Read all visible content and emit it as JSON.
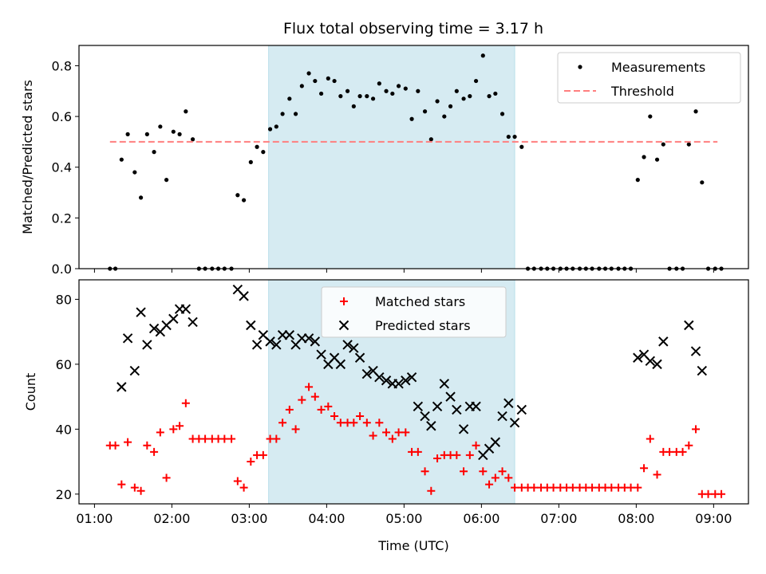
{
  "chart_data": [
    {
      "type": "scatter",
      "title": "Flux total observing time = 3.17 h",
      "xlabel": "",
      "ylabel": "Matched/Predicted stars",
      "ylim": [
        0,
        0.88
      ],
      "yticks": [
        "0.0",
        "0.2",
        "0.4",
        "0.6",
        "0.8"
      ],
      "ytick_values": [
        0,
        0.2,
        0.4,
        0.6,
        0.8
      ],
      "xlim": [
        0.8,
        9.45
      ],
      "legend_position": "top-right",
      "highlight_span": [
        3.25,
        6.43
      ],
      "series": [
        {
          "name": "Measurements",
          "color": "#000000",
          "marker": "dot",
          "x": [
            1.2,
            1.27,
            1.35,
            1.43,
            1.52,
            1.6,
            1.68,
            1.77,
            1.85,
            1.93,
            2.02,
            2.1,
            2.18,
            2.27,
            2.35,
            2.43,
            2.52,
            2.6,
            2.68,
            2.77,
            2.85,
            2.93,
            3.02,
            3.1,
            3.18,
            3.27,
            3.35,
            3.43,
            3.52,
            3.6,
            3.68,
            3.77,
            3.85,
            3.93,
            4.02,
            4.1,
            4.18,
            4.27,
            4.35,
            4.43,
            4.52,
            4.6,
            4.68,
            4.77,
            4.85,
            4.93,
            5.02,
            5.1,
            5.18,
            5.27,
            5.35,
            5.43,
            5.52,
            5.6,
            5.68,
            5.77,
            5.85,
            5.93,
            6.02,
            6.1,
            6.18,
            6.27,
            6.35,
            6.43,
            6.52,
            6.6,
            6.68,
            6.77,
            6.85,
            6.93,
            7.02,
            7.1,
            7.18,
            7.27,
            7.35,
            7.43,
            7.52,
            7.6,
            7.68,
            7.77,
            7.85,
            7.93,
            8.02,
            8.1,
            8.18,
            8.27,
            8.35,
            8.43,
            8.52,
            8.6,
            8.68,
            8.77,
            8.85,
            8.93,
            9.02,
            9.1
          ],
          "y": [
            0,
            0,
            0.43,
            0.53,
            0.38,
            0.28,
            0.53,
            0.46,
            0.56,
            0.35,
            0.54,
            0.53,
            0.62,
            0.51,
            0,
            0,
            0,
            0,
            0,
            0,
            0.29,
            0.27,
            0.42,
            0.48,
            0.46,
            0.55,
            0.56,
            0.61,
            0.67,
            0.61,
            0.72,
            0.77,
            0.74,
            0.69,
            0.75,
            0.74,
            0.68,
            0.7,
            0.64,
            0.68,
            0.68,
            0.67,
            0.73,
            0.7,
            0.69,
            0.72,
            0.71,
            0.59,
            0.7,
            0.62,
            0.51,
            0.66,
            0.6,
            0.64,
            0.7,
            0.67,
            0.68,
            0.74,
            0.84,
            0.68,
            0.69,
            0.61,
            0.52,
            0.52,
            0.48,
            0,
            0,
            0,
            0,
            0,
            0,
            0,
            0,
            0,
            0,
            0,
            0,
            0,
            0,
            0,
            0,
            0,
            0.35,
            0.44,
            0.6,
            0.43,
            0.49,
            0,
            0,
            0,
            0.49,
            0.62,
            0.34,
            0,
            0,
            0
          ]
        },
        {
          "name": "Threshold",
          "color": "#ff7f7f",
          "line": "dashed",
          "x": [
            1.2,
            9.05
          ],
          "y": [
            0.5,
            0.5
          ]
        }
      ]
    },
    {
      "type": "scatter",
      "title": "",
      "xlabel": "Time (UTC)",
      "ylabel": "Count",
      "ylim": [
        17,
        86
      ],
      "yticks": [
        "20",
        "40",
        "60",
        "80"
      ],
      "ytick_values": [
        20,
        40,
        60,
        80
      ],
      "xlim": [
        0.8,
        9.45
      ],
      "xticks": [
        "01:00",
        "02:00",
        "03:00",
        "04:00",
        "05:00",
        "06:00",
        "07:00",
        "08:00",
        "09:00"
      ],
      "xtick_values": [
        1,
        2,
        3,
        4,
        5,
        6,
        7,
        8,
        9
      ],
      "legend_position": "top-center",
      "highlight_span": [
        3.25,
        6.43
      ],
      "series": [
        {
          "name": "Matched stars",
          "color": "#ff0000",
          "marker": "plus",
          "x": [
            1.2,
            1.27,
            1.35,
            1.43,
            1.52,
            1.6,
            1.68,
            1.77,
            1.85,
            1.93,
            2.02,
            2.1,
            2.18,
            2.27,
            2.35,
            2.43,
            2.52,
            2.6,
            2.68,
            2.77,
            2.85,
            2.93,
            3.02,
            3.1,
            3.18,
            3.27,
            3.35,
            3.43,
            3.52,
            3.6,
            3.68,
            3.77,
            3.85,
            3.93,
            4.02,
            4.1,
            4.18,
            4.27,
            4.35,
            4.43,
            4.52,
            4.6,
            4.68,
            4.77,
            4.85,
            4.93,
            5.02,
            5.1,
            5.18,
            5.27,
            5.35,
            5.43,
            5.52,
            5.6,
            5.68,
            5.77,
            5.85,
            5.93,
            6.02,
            6.1,
            6.18,
            6.27,
            6.35,
            6.43,
            6.52,
            6.6,
            6.68,
            6.77,
            6.85,
            6.93,
            7.02,
            7.1,
            7.18,
            7.27,
            7.35,
            7.43,
            7.52,
            7.6,
            7.68,
            7.77,
            7.85,
            7.93,
            8.02,
            8.1,
            8.18,
            8.27,
            8.35,
            8.43,
            8.52,
            8.6,
            8.68,
            8.77,
            8.85,
            8.93,
            9.02,
            9.1
          ],
          "y": [
            35,
            35,
            23,
            36,
            22,
            21,
            35,
            33,
            39,
            25,
            40,
            41,
            48,
            37,
            37,
            37,
            37,
            37,
            37,
            37,
            24,
            22,
            30,
            32,
            32,
            37,
            37,
            42,
            46,
            40,
            49,
            53,
            50,
            46,
            47,
            44,
            42,
            42,
            42,
            44,
            42,
            38,
            42,
            39,
            37,
            39,
            39,
            33,
            33,
            27,
            21,
            31,
            32,
            32,
            32,
            27,
            32,
            35,
            27,
            23,
            25,
            27,
            25,
            22,
            22,
            22,
            22,
            22,
            22,
            22,
            22,
            22,
            22,
            22,
            22,
            22,
            22,
            22,
            22,
            22,
            22,
            22,
            22,
            28,
            37,
            26,
            33,
            33,
            33,
            33,
            35,
            40,
            20,
            20,
            20,
            20
          ]
        },
        {
          "name": "Predicted stars",
          "color": "#000000",
          "marker": "cross",
          "x": [
            1.35,
            1.43,
            1.52,
            1.6,
            1.68,
            1.77,
            1.85,
            1.93,
            2.02,
            2.1,
            2.18,
            2.27,
            2.85,
            2.93,
            3.02,
            3.1,
            3.18,
            3.27,
            3.35,
            3.43,
            3.52,
            3.6,
            3.68,
            3.77,
            3.85,
            3.93,
            4.02,
            4.1,
            4.18,
            4.27,
            4.35,
            4.43,
            4.52,
            4.6,
            4.68,
            4.77,
            4.85,
            4.93,
            5.02,
            5.1,
            5.18,
            5.27,
            5.35,
            5.43,
            5.52,
            5.6,
            5.68,
            5.77,
            5.85,
            5.93,
            6.02,
            6.1,
            6.18,
            6.27,
            6.35,
            6.43,
            6.52,
            8.02,
            8.1,
            8.18,
            8.27,
            8.35,
            8.68,
            8.77,
            8.85
          ],
          "y": [
            53,
            68,
            58,
            76,
            66,
            71,
            70,
            72,
            74,
            77,
            77,
            73,
            83,
            81,
            72,
            66,
            69,
            67,
            66,
            69,
            69,
            66,
            68,
            68,
            67,
            63,
            60,
            62,
            60,
            66,
            65,
            62,
            57,
            58,
            56,
            55,
            54,
            54,
            55,
            56,
            47,
            44,
            41,
            47,
            54,
            50,
            46,
            40,
            47,
            47,
            32,
            34,
            36,
            44,
            48,
            42,
            46,
            62,
            63,
            61,
            60,
            67,
            72,
            64,
            58
          ]
        }
      ]
    }
  ]
}
